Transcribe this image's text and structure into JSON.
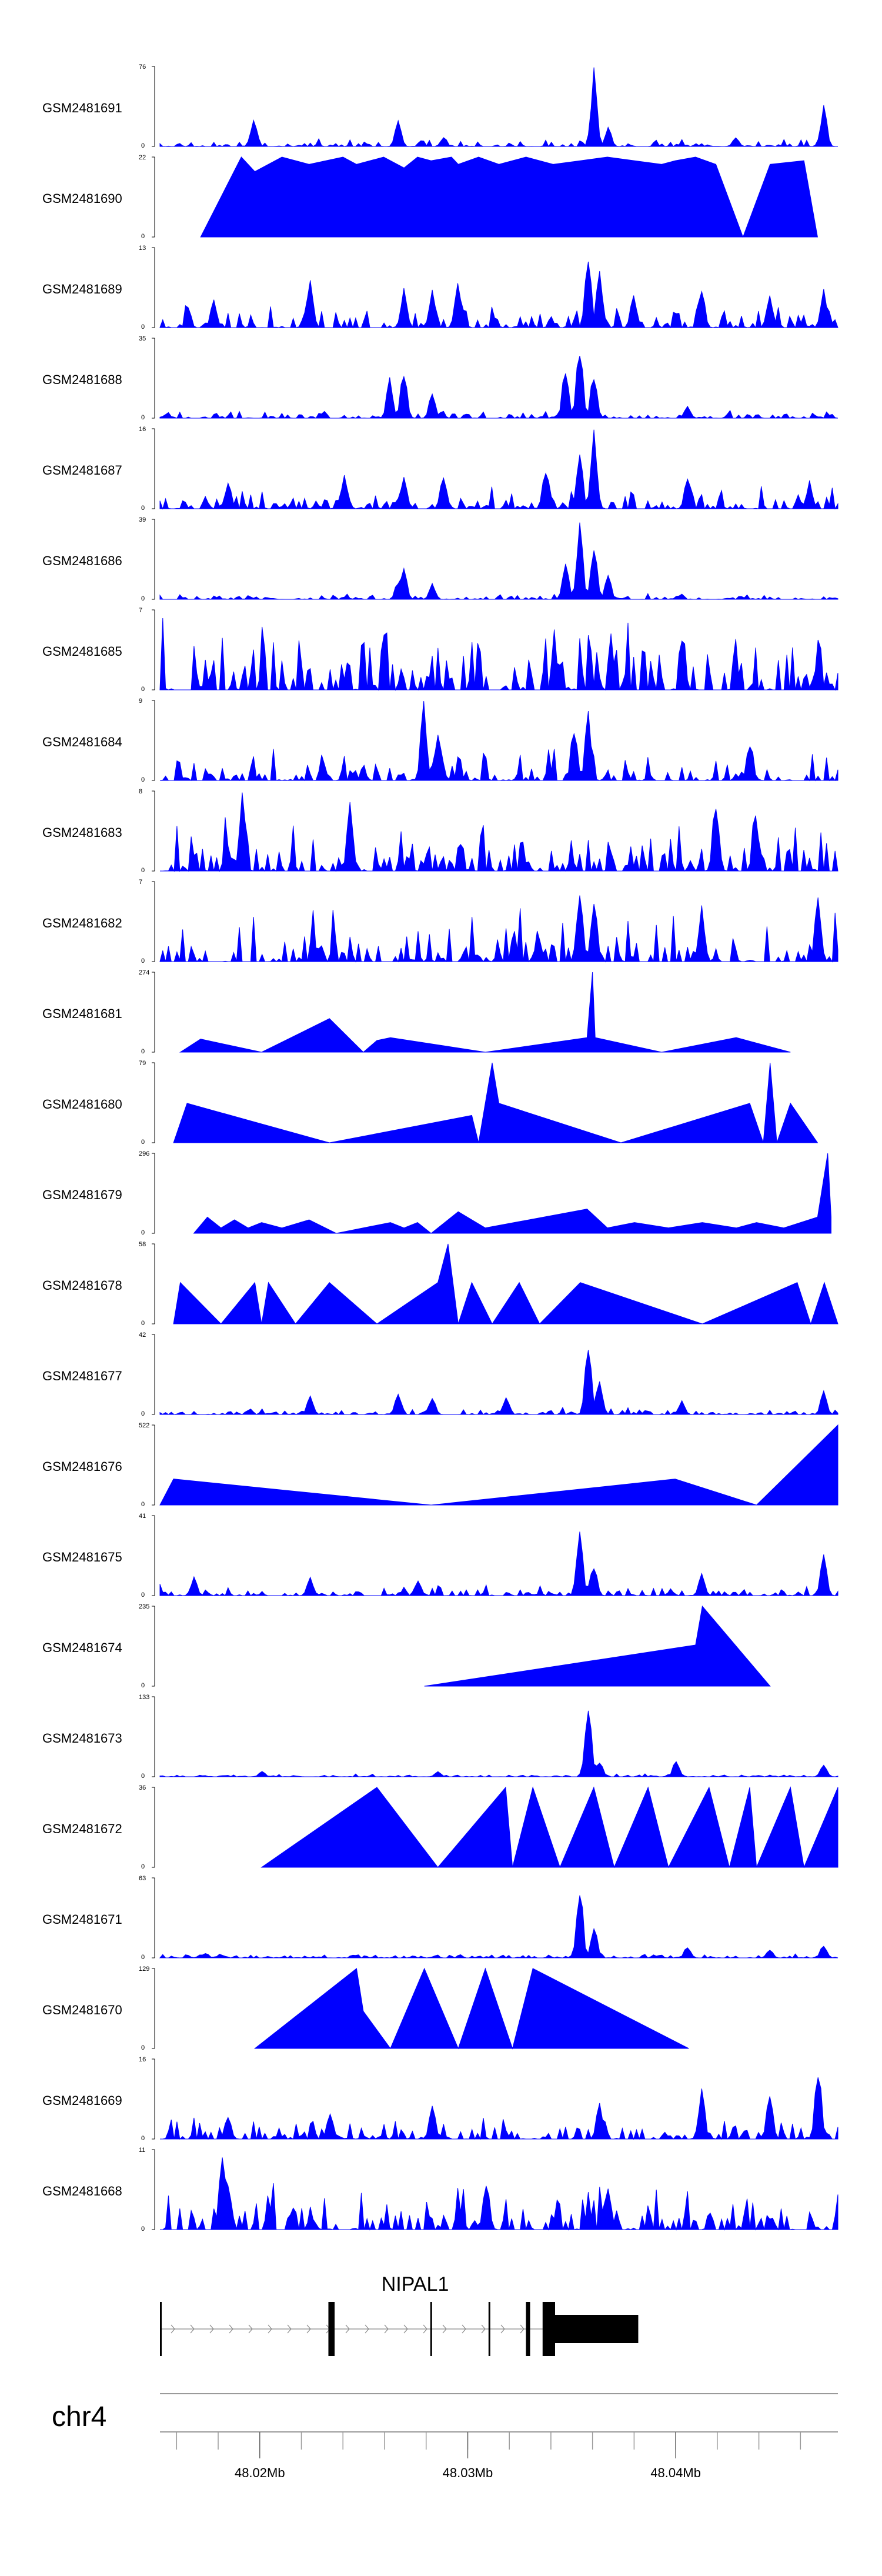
{
  "chart_data": {
    "type": "area",
    "series_color": "#0000ff",
    "x_range": [
      48.0152,
      48.0478
    ],
    "x_unit": "Mb",
    "tracks": [
      {
        "name": "GSM2481691",
        "ymax": 76,
        "peaks": [
          [
            0.14,
            28
          ],
          [
            0.35,
            26
          ],
          [
            0.42,
            10
          ],
          [
            0.64,
            76
          ],
          [
            0.66,
            20
          ],
          [
            0.85,
            10
          ],
          [
            0.98,
            42
          ]
        ],
        "kind": "noisy",
        "noise": 8
      },
      {
        "name": "GSM2481690",
        "ymax": 22,
        "peaks": [
          [
            0.06,
            0
          ],
          [
            0.12,
            22
          ],
          [
            0.14,
            18
          ],
          [
            0.18,
            22
          ],
          [
            0.22,
            20
          ],
          [
            0.27,
            22
          ],
          [
            0.29,
            20
          ],
          [
            0.33,
            22
          ],
          [
            0.36,
            19
          ],
          [
            0.38,
            22
          ],
          [
            0.4,
            21
          ],
          [
            0.43,
            22
          ],
          [
            0.44,
            20
          ],
          [
            0.47,
            22
          ],
          [
            0.5,
            20
          ],
          [
            0.54,
            22
          ],
          [
            0.58,
            20
          ],
          [
            0.62,
            21
          ],
          [
            0.66,
            22
          ],
          [
            0.7,
            21
          ],
          [
            0.74,
            20
          ],
          [
            0.76,
            21
          ],
          [
            0.79,
            22
          ],
          [
            0.82,
            20
          ],
          [
            0.86,
            0
          ],
          [
            0.9,
            20
          ],
          [
            0.95,
            21
          ],
          [
            0.97,
            0
          ]
        ],
        "kind": "triangles"
      },
      {
        "name": "GSM2481689",
        "ymax": 13,
        "peaks": [
          [
            0.08,
            5
          ],
          [
            0.22,
            8
          ],
          [
            0.36,
            7
          ],
          [
            0.4,
            7
          ],
          [
            0.44,
            8
          ],
          [
            0.63,
            13
          ],
          [
            0.65,
            10
          ],
          [
            0.7,
            6
          ],
          [
            0.8,
            7
          ],
          [
            0.9,
            6
          ],
          [
            0.98,
            7
          ]
        ],
        "kind": "noisy",
        "noise": 4
      },
      {
        "name": "GSM2481688",
        "ymax": 35,
        "peaks": [
          [
            0.34,
            18
          ],
          [
            0.36,
            24
          ],
          [
            0.4,
            12
          ],
          [
            0.6,
            25
          ],
          [
            0.62,
            35
          ],
          [
            0.64,
            22
          ],
          [
            0.78,
            6
          ]
        ],
        "kind": "noisy",
        "noise": 4
      },
      {
        "name": "GSM2481687",
        "ymax": 16,
        "peaks": [
          [
            0.1,
            6
          ],
          [
            0.27,
            7
          ],
          [
            0.36,
            7
          ],
          [
            0.42,
            8
          ],
          [
            0.57,
            9
          ],
          [
            0.62,
            12
          ],
          [
            0.64,
            16
          ],
          [
            0.78,
            7
          ],
          [
            0.96,
            6
          ]
        ],
        "kind": "noisy",
        "noise": 5
      },
      {
        "name": "GSM2481686",
        "ymax": 39,
        "peaks": [
          [
            0.35,
            10
          ],
          [
            0.36,
            16
          ],
          [
            0.4,
            8
          ],
          [
            0.6,
            20
          ],
          [
            0.62,
            39
          ],
          [
            0.64,
            30
          ],
          [
            0.66,
            12
          ]
        ],
        "kind": "noisy",
        "noise": 3
      },
      {
        "name": "GSM2481685",
        "ymax": 7,
        "peaks": [],
        "kind": "noisy",
        "noise": 7
      },
      {
        "name": "GSM2481684",
        "ymax": 9,
        "peaks": [
          [
            0.39,
            9
          ],
          [
            0.41,
            6
          ],
          [
            0.61,
            7
          ],
          [
            0.63,
            8
          ],
          [
            0.87,
            5
          ]
        ],
        "kind": "noisy",
        "noise": 4
      },
      {
        "name": "GSM2481683",
        "ymax": 8,
        "peaks": [
          [
            0.12,
            8
          ],
          [
            0.28,
            7
          ],
          [
            0.82,
            8
          ],
          [
            0.88,
            6
          ]
        ],
        "kind": "noisy",
        "noise": 6
      },
      {
        "name": "GSM2481682",
        "ymax": 7,
        "peaks": [
          [
            0.62,
            7
          ],
          [
            0.64,
            6
          ],
          [
            0.8,
            5
          ],
          [
            0.97,
            6
          ]
        ],
        "kind": "noisy",
        "noise": 5
      },
      {
        "name": "GSM2481681",
        "ymax": 274,
        "peaks": [
          [
            0.03,
            0
          ],
          [
            0.06,
            45
          ],
          [
            0.15,
            0
          ],
          [
            0.25,
            115
          ],
          [
            0.3,
            0
          ],
          [
            0.32,
            40
          ],
          [
            0.34,
            50
          ],
          [
            0.48,
            0
          ],
          [
            0.63,
            50
          ],
          [
            0.638,
            274
          ],
          [
            0.642,
            50
          ],
          [
            0.74,
            0
          ],
          [
            0.85,
            50
          ],
          [
            0.93,
            0
          ]
        ],
        "kind": "triangles"
      },
      {
        "name": "GSM2481680",
        "ymax": 79,
        "peaks": [
          [
            0.02,
            0
          ],
          [
            0.04,
            39
          ],
          [
            0.25,
            0
          ],
          [
            0.46,
            27
          ],
          [
            0.47,
            0
          ],
          [
            0.49,
            79
          ],
          [
            0.5,
            39
          ],
          [
            0.68,
            0
          ],
          [
            0.87,
            39
          ],
          [
            0.89,
            0
          ],
          [
            0.9,
            79
          ],
          [
            0.91,
            0
          ],
          [
            0.93,
            39
          ],
          [
            0.97,
            0
          ]
        ],
        "kind": "triangles"
      },
      {
        "name": "GSM2481679",
        "ymax": 296,
        "peaks": [
          [
            0.05,
            0
          ],
          [
            0.07,
            60
          ],
          [
            0.09,
            20
          ],
          [
            0.11,
            50
          ],
          [
            0.13,
            20
          ],
          [
            0.15,
            40
          ],
          [
            0.18,
            20
          ],
          [
            0.22,
            50
          ],
          [
            0.26,
            0
          ],
          [
            0.34,
            40
          ],
          [
            0.36,
            20
          ],
          [
            0.38,
            40
          ],
          [
            0.4,
            0
          ],
          [
            0.44,
            80
          ],
          [
            0.48,
            20
          ],
          [
            0.63,
            90
          ],
          [
            0.66,
            20
          ],
          [
            0.7,
            40
          ],
          [
            0.75,
            20
          ],
          [
            0.8,
            40
          ],
          [
            0.85,
            20
          ],
          [
            0.88,
            40
          ],
          [
            0.92,
            20
          ],
          [
            0.97,
            60
          ],
          [
            0.985,
            296
          ],
          [
            0.99,
            60
          ]
        ],
        "kind": "triangles"
      },
      {
        "name": "GSM2481678",
        "ymax": 58,
        "peaks": [
          [
            0.02,
            0
          ],
          [
            0.03,
            30
          ],
          [
            0.09,
            0
          ],
          [
            0.14,
            30
          ],
          [
            0.15,
            0
          ],
          [
            0.16,
            30
          ],
          [
            0.2,
            0
          ],
          [
            0.25,
            30
          ],
          [
            0.32,
            0
          ],
          [
            0.41,
            30
          ],
          [
            0.425,
            58
          ],
          [
            0.44,
            0
          ],
          [
            0.46,
            30
          ],
          [
            0.49,
            0
          ],
          [
            0.53,
            30
          ],
          [
            0.56,
            0
          ],
          [
            0.62,
            30
          ],
          [
            0.8,
            0
          ],
          [
            0.94,
            30
          ],
          [
            0.96,
            0
          ],
          [
            0.98,
            30
          ],
          [
            1.0,
            0
          ]
        ],
        "kind": "triangles"
      },
      {
        "name": "GSM2481677",
        "ymax": 42,
        "peaks": [
          [
            0.22,
            10
          ],
          [
            0.35,
            12
          ],
          [
            0.4,
            10
          ],
          [
            0.51,
            10
          ],
          [
            0.63,
            42
          ],
          [
            0.65,
            20
          ],
          [
            0.77,
            8
          ],
          [
            0.98,
            14
          ]
        ],
        "kind": "noisy",
        "noise": 4
      },
      {
        "name": "GSM2481676",
        "ymax": 522,
        "peaks": [
          [
            0.0,
            0
          ],
          [
            0.02,
            170
          ],
          [
            0.4,
            0
          ],
          [
            0.76,
            170
          ],
          [
            0.88,
            0
          ],
          [
            1.0,
            522
          ]
        ],
        "kind": "triangles"
      },
      {
        "name": "GSM2481675",
        "ymax": 41,
        "peaks": [
          [
            0.05,
            10
          ],
          [
            0.22,
            10
          ],
          [
            0.38,
            8
          ],
          [
            0.62,
            41
          ],
          [
            0.64,
            18
          ],
          [
            0.8,
            12
          ],
          [
            0.98,
            22
          ]
        ],
        "kind": "noisy",
        "noise": 6
      },
      {
        "name": "GSM2481674",
        "ymax": 235,
        "peaks": [
          [
            0.39,
            0
          ],
          [
            0.79,
            121
          ],
          [
            0.8,
            235
          ],
          [
            0.9,
            0
          ]
        ],
        "kind": "triangles"
      },
      {
        "name": "GSM2481673",
        "ymax": 133,
        "peaks": [
          [
            0.15,
            10
          ],
          [
            0.41,
            10
          ],
          [
            0.63,
            133
          ],
          [
            0.65,
            30
          ],
          [
            0.76,
            30
          ],
          [
            0.98,
            25
          ]
        ],
        "kind": "noisy",
        "noise": 6
      },
      {
        "name": "GSM2481672",
        "ymax": 36,
        "peaks": [
          [
            0.15,
            0
          ],
          [
            0.32,
            36
          ],
          [
            0.41,
            0
          ],
          [
            0.51,
            36
          ],
          [
            0.52,
            0
          ],
          [
            0.55,
            36
          ],
          [
            0.59,
            0
          ],
          [
            0.64,
            36
          ],
          [
            0.67,
            0
          ],
          [
            0.72,
            36
          ],
          [
            0.75,
            0
          ],
          [
            0.81,
            36
          ],
          [
            0.84,
            0
          ],
          [
            0.87,
            36
          ],
          [
            0.88,
            0
          ],
          [
            0.93,
            36
          ],
          [
            0.95,
            0
          ],
          [
            1.0,
            36
          ]
        ],
        "kind": "triangles"
      },
      {
        "name": "GSM2481671",
        "ymax": 63,
        "peaks": [
          [
            0.62,
            63
          ],
          [
            0.64,
            28
          ],
          [
            0.78,
            10
          ],
          [
            0.9,
            8
          ],
          [
            0.98,
            12
          ]
        ],
        "kind": "noisy",
        "noise": 4
      },
      {
        "name": "GSM2481670",
        "ymax": 129,
        "peaks": [
          [
            0.14,
            0
          ],
          [
            0.29,
            129
          ],
          [
            0.3,
            60
          ],
          [
            0.34,
            0
          ],
          [
            0.39,
            129
          ],
          [
            0.44,
            0
          ],
          [
            0.48,
            129
          ],
          [
            0.52,
            0
          ],
          [
            0.55,
            129
          ],
          [
            0.78,
            0
          ]
        ],
        "kind": "triangles"
      },
      {
        "name": "GSM2481669",
        "ymax": 16,
        "peaks": [
          [
            0.1,
            5
          ],
          [
            0.25,
            6
          ],
          [
            0.4,
            7
          ],
          [
            0.65,
            8
          ],
          [
            0.8,
            11
          ],
          [
            0.9,
            10
          ],
          [
            0.97,
            16
          ]
        ],
        "kind": "noisy",
        "noise": 5
      },
      {
        "name": "GSM2481668",
        "ymax": 11,
        "peaks": [
          [
            0.09,
            11
          ],
          [
            0.1,
            7
          ],
          [
            0.48,
            8
          ],
          [
            0.66,
            7
          ]
        ],
        "kind": "noisy",
        "noise": 7
      }
    ],
    "gene": {
      "name": "NIPAL1",
      "start": 48.0152,
      "end": 48.0382,
      "strand": "+",
      "exons": [
        [
          48.0152,
          48.01525
        ],
        [
          48.0233,
          48.0236
        ],
        [
          48.0282,
          48.02825
        ],
        [
          48.031,
          48.03105
        ],
        [
          48.0328,
          48.033
        ],
        [
          48.0336,
          48.0342
        ],
        [
          48.0342,
          48.0382
        ]
      ],
      "coding_exons": [
        [
          48.0233,
          48.0236
        ],
        [
          48.0328,
          48.033
        ],
        [
          48.0336,
          48.0342
        ]
      ],
      "utr_exons": [
        [
          48.0342,
          48.0382
        ]
      ]
    },
    "chromosome": "chr4",
    "x_ticks": [
      48.02,
      48.03,
      48.04
    ],
    "x_tick_labels": [
      "48.02Mb",
      "48.03Mb",
      "48.04Mb"
    ],
    "minor_tick_step": 0.002
  }
}
